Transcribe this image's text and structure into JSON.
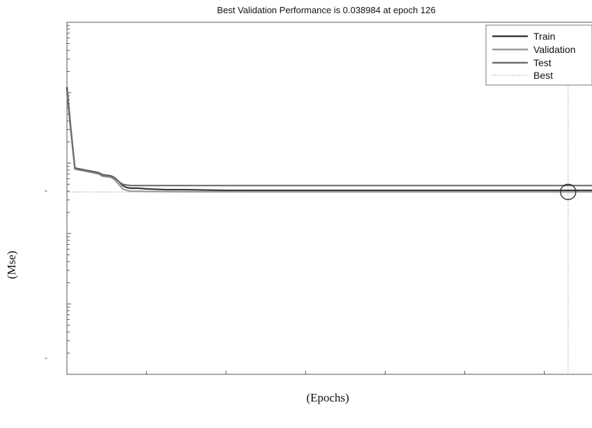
{
  "chart_data": {
    "type": "line",
    "title": "Best Validation Performance is 0.038984 at epoch 126",
    "xlabel": "(Epochs)",
    "ylabel": "(Mse)",
    "ylim": [
      0.0001,
      10
    ],
    "yscale": "log",
    "xlim": [
      0,
      132
    ],
    "y_tick_labels": [
      "-",
      "-"
    ],
    "legend_position": "top-right",
    "legend": [
      "Train",
      "Validation",
      "Test",
      "Best"
    ],
    "series": [
      {
        "name": "Train",
        "color": "#3a3a3a",
        "x": [
          0,
          1,
          2,
          6,
          8,
          9,
          11,
          12,
          13,
          14,
          15,
          16,
          18,
          20,
          25,
          30,
          40,
          60,
          90,
          126,
          132
        ],
        "y": [
          1.2,
          0.3,
          0.085,
          0.077,
          0.073,
          0.068,
          0.066,
          0.062,
          0.055,
          0.048,
          0.045,
          0.044,
          0.044,
          0.043,
          0.042,
          0.042,
          0.041,
          0.041,
          0.041,
          0.041,
          0.041
        ]
      },
      {
        "name": "Validation",
        "color": "#9a9a9a",
        "x": [
          0,
          1,
          2,
          6,
          8,
          9,
          11,
          12,
          13,
          14,
          15,
          16,
          18,
          20,
          25,
          30,
          40,
          60,
          90,
          126,
          132
        ],
        "y": [
          1.0,
          0.28,
          0.082,
          0.074,
          0.07,
          0.065,
          0.063,
          0.058,
          0.05,
          0.043,
          0.041,
          0.04,
          0.0398,
          0.0395,
          0.0393,
          0.0392,
          0.0391,
          0.039,
          0.039,
          0.038984,
          0.039
        ]
      },
      {
        "name": "Test",
        "color": "#6e6e6e",
        "x": [
          0,
          1,
          2,
          6,
          8,
          9,
          11,
          12,
          13,
          14,
          15,
          16,
          18,
          20,
          25,
          30,
          40,
          60,
          90,
          126,
          132
        ],
        "y": [
          1.1,
          0.29,
          0.084,
          0.076,
          0.072,
          0.067,
          0.065,
          0.061,
          0.055,
          0.05,
          0.049,
          0.048,
          0.048,
          0.048,
          0.048,
          0.048,
          0.048,
          0.048,
          0.048,
          0.048,
          0.048
        ]
      }
    ],
    "best": {
      "name": "Best",
      "epoch": 126,
      "value": 0.038984,
      "color": "#9a9a9a"
    }
  }
}
